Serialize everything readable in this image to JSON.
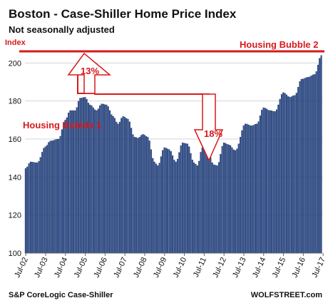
{
  "colors": {
    "bar": "#2f4f8f",
    "bar_edge": "#1a2c55",
    "accent_red": "#d7191c",
    "grid": "#d4d4d4",
    "arrow_fill": "#ffffff"
  },
  "chart_data": {
    "type": "bar",
    "title": "Boston - Case-Shiller Home Price Index",
    "subtitle": "Not seasonally adjusted",
    "ylabel": "Index",
    "ylim": [
      100,
      205
    ],
    "yticks": [
      100,
      120,
      140,
      160,
      180,
      200
    ],
    "grid": true,
    "x_start": "2002-07",
    "xtick_labels": [
      "Jul-02",
      "Jul-03",
      "Jul-04",
      "Jul-05",
      "Jul-06",
      "Jul-07",
      "Jul-08",
      "Jul-09",
      "Jul-10",
      "Jul-11",
      "Jul-12",
      "Jul-13",
      "Jul-14",
      "Jul-15",
      "Jul-16",
      "Jul-17"
    ],
    "anchors": [
      [
        "2002-07",
        144.5
      ],
      [
        "2002-10",
        148
      ],
      [
        "2003-02",
        147.5
      ],
      [
        "2003-07",
        156
      ],
      [
        "2003-10",
        159
      ],
      [
        "2004-03",
        160
      ],
      [
        "2004-07",
        170
      ],
      [
        "2004-10",
        175
      ],
      [
        "2005-01",
        175
      ],
      [
        "2005-04",
        181.5
      ],
      [
        "2005-07",
        182
      ],
      [
        "2005-10",
        178
      ],
      [
        "2006-02",
        175
      ],
      [
        "2006-05",
        178.5
      ],
      [
        "2006-08",
        178
      ],
      [
        "2006-12",
        172
      ],
      [
        "2007-03",
        168
      ],
      [
        "2007-06",
        172
      ],
      [
        "2007-09",
        170.5
      ],
      [
        "2008-01",
        161
      ],
      [
        "2008-03",
        160.5
      ],
      [
        "2008-06",
        162.5
      ],
      [
        "2008-09",
        161
      ],
      [
        "2009-01",
        148
      ],
      [
        "2009-03",
        146
      ],
      [
        "2009-07",
        155.5
      ],
      [
        "2009-10",
        154.5
      ],
      [
        "2010-02",
        148
      ],
      [
        "2010-06",
        158
      ],
      [
        "2010-09",
        157.5
      ],
      [
        "2011-01",
        147.5
      ],
      [
        "2011-03",
        146
      ],
      [
        "2011-06",
        155.5
      ],
      [
        "2011-09",
        154
      ],
      [
        "2012-01",
        146.5
      ],
      [
        "2012-03",
        146
      ],
      [
        "2012-07",
        158
      ],
      [
        "2012-10",
        157
      ],
      [
        "2013-02",
        154
      ],
      [
        "2013-08",
        168
      ],
      [
        "2013-12",
        167
      ],
      [
        "2014-03",
        168
      ],
      [
        "2014-07",
        176.5
      ],
      [
        "2014-11",
        175
      ],
      [
        "2015-02",
        174.5
      ],
      [
        "2015-07",
        184.5
      ],
      [
        "2015-11",
        182
      ],
      [
        "2016-02",
        183
      ],
      [
        "2016-06",
        191.5
      ],
      [
        "2016-10",
        192.5
      ],
      [
        "2017-02",
        194
      ],
      [
        "2017-06",
        204
      ]
    ],
    "annotations": {
      "bubble1": "Housing Bubble 1",
      "bubble2": "Housing Bubble 2",
      "rise_pct": "13%",
      "fall_pct": "18%"
    }
  },
  "footer": {
    "source": "S&P CoreLogic Case-Shiller",
    "brand": "WOLFSTREET.com"
  }
}
